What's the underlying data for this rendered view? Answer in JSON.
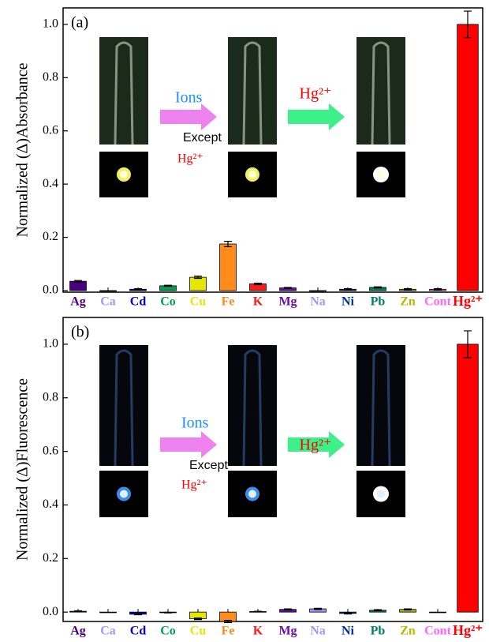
{
  "chart_data": [
    {
      "type": "bar",
      "panel_label": "(a)",
      "y_label": "Normalized (Δ)Absorbance",
      "categories": [
        "Ag",
        "Ca",
        "Cd",
        "Co",
        "Cu",
        "Fe",
        "K",
        "Mg",
        "Na",
        "Ni",
        "Pb",
        "Zn",
        "Cont",
        "Hg²⁺"
      ],
      "values": [
        0.035,
        0,
        0.005,
        0.018,
        0.05,
        0.175,
        0.025,
        0.01,
        0,
        0.005,
        0.012,
        0.005,
        0.005,
        1.0
      ],
      "errors": [
        0.003,
        0,
        0.002,
        0.002,
        0.004,
        0.01,
        0.003,
        0.002,
        0,
        0.002,
        0.002,
        0.002,
        0.002,
        0.05
      ],
      "colors": [
        "#4b0082",
        "#9a9aff",
        "#0000cc",
        "#00a050",
        "#e6e600",
        "#ff8c1a",
        "#ff1a1a",
        "#6a0dad",
        "#9a9aff",
        "#003399",
        "#008060",
        "#b8b800",
        "#ff66ff",
        "#ff0000"
      ],
      "ylim": [
        -0.006,
        1.062
      ],
      "yticks": [
        {
          "value": 0,
          "label": "0.0"
        },
        0.2,
        0.4,
        0.6,
        0.8,
        {
          "value": 1,
          "label": "1.0"
        }
      ],
      "annotations": {
        "ions": "Ions",
        "except": "Except",
        "hg_below": "Hg²⁺",
        "hg_arrow": "Hg²⁺"
      }
    },
    {
      "type": "bar",
      "panel_label": "(b)",
      "y_label": "Normalized (Δ)Fluorescence",
      "categories": [
        "Ag",
        "Ca",
        "Cd",
        "Co",
        "Cu",
        "Fe",
        "K",
        "Mg",
        "Na",
        "Ni",
        "Pb",
        "Zn",
        "Cont",
        "Hg²⁺"
      ],
      "values": [
        0.003,
        0,
        -0.008,
        -0.002,
        -0.025,
        -0.035,
        0.002,
        0.01,
        0.012,
        -0.005,
        0.007,
        0.01,
        0,
        1.0
      ],
      "errors": [
        0.002,
        0,
        0.002,
        0.001,
        0.003,
        0.004,
        0.001,
        0.002,
        0.002,
        0.002,
        0.002,
        0.002,
        0,
        0.05
      ],
      "colors": [
        "#4b0082",
        "#9a9aff",
        "#0000cc",
        "#00a050",
        "#e6e600",
        "#ff8c1a",
        "#ff1a1a",
        "#6a0dad",
        "#9a9aff",
        "#003399",
        "#008060",
        "#b8b800",
        "#ff66ff",
        "#ff0000"
      ],
      "ylim": [
        -0.035,
        1.1
      ],
      "yticks": [
        {
          "value": 0,
          "label": "0.0"
        },
        0.2,
        0.4,
        0.6,
        0.8,
        {
          "value": 1,
          "label": "1.0"
        }
      ],
      "annotations": {
        "ions": "Ions",
        "except": "Except",
        "hg_below": "Hg²⁺",
        "hg_arrow": "Hg²⁺"
      }
    }
  ]
}
